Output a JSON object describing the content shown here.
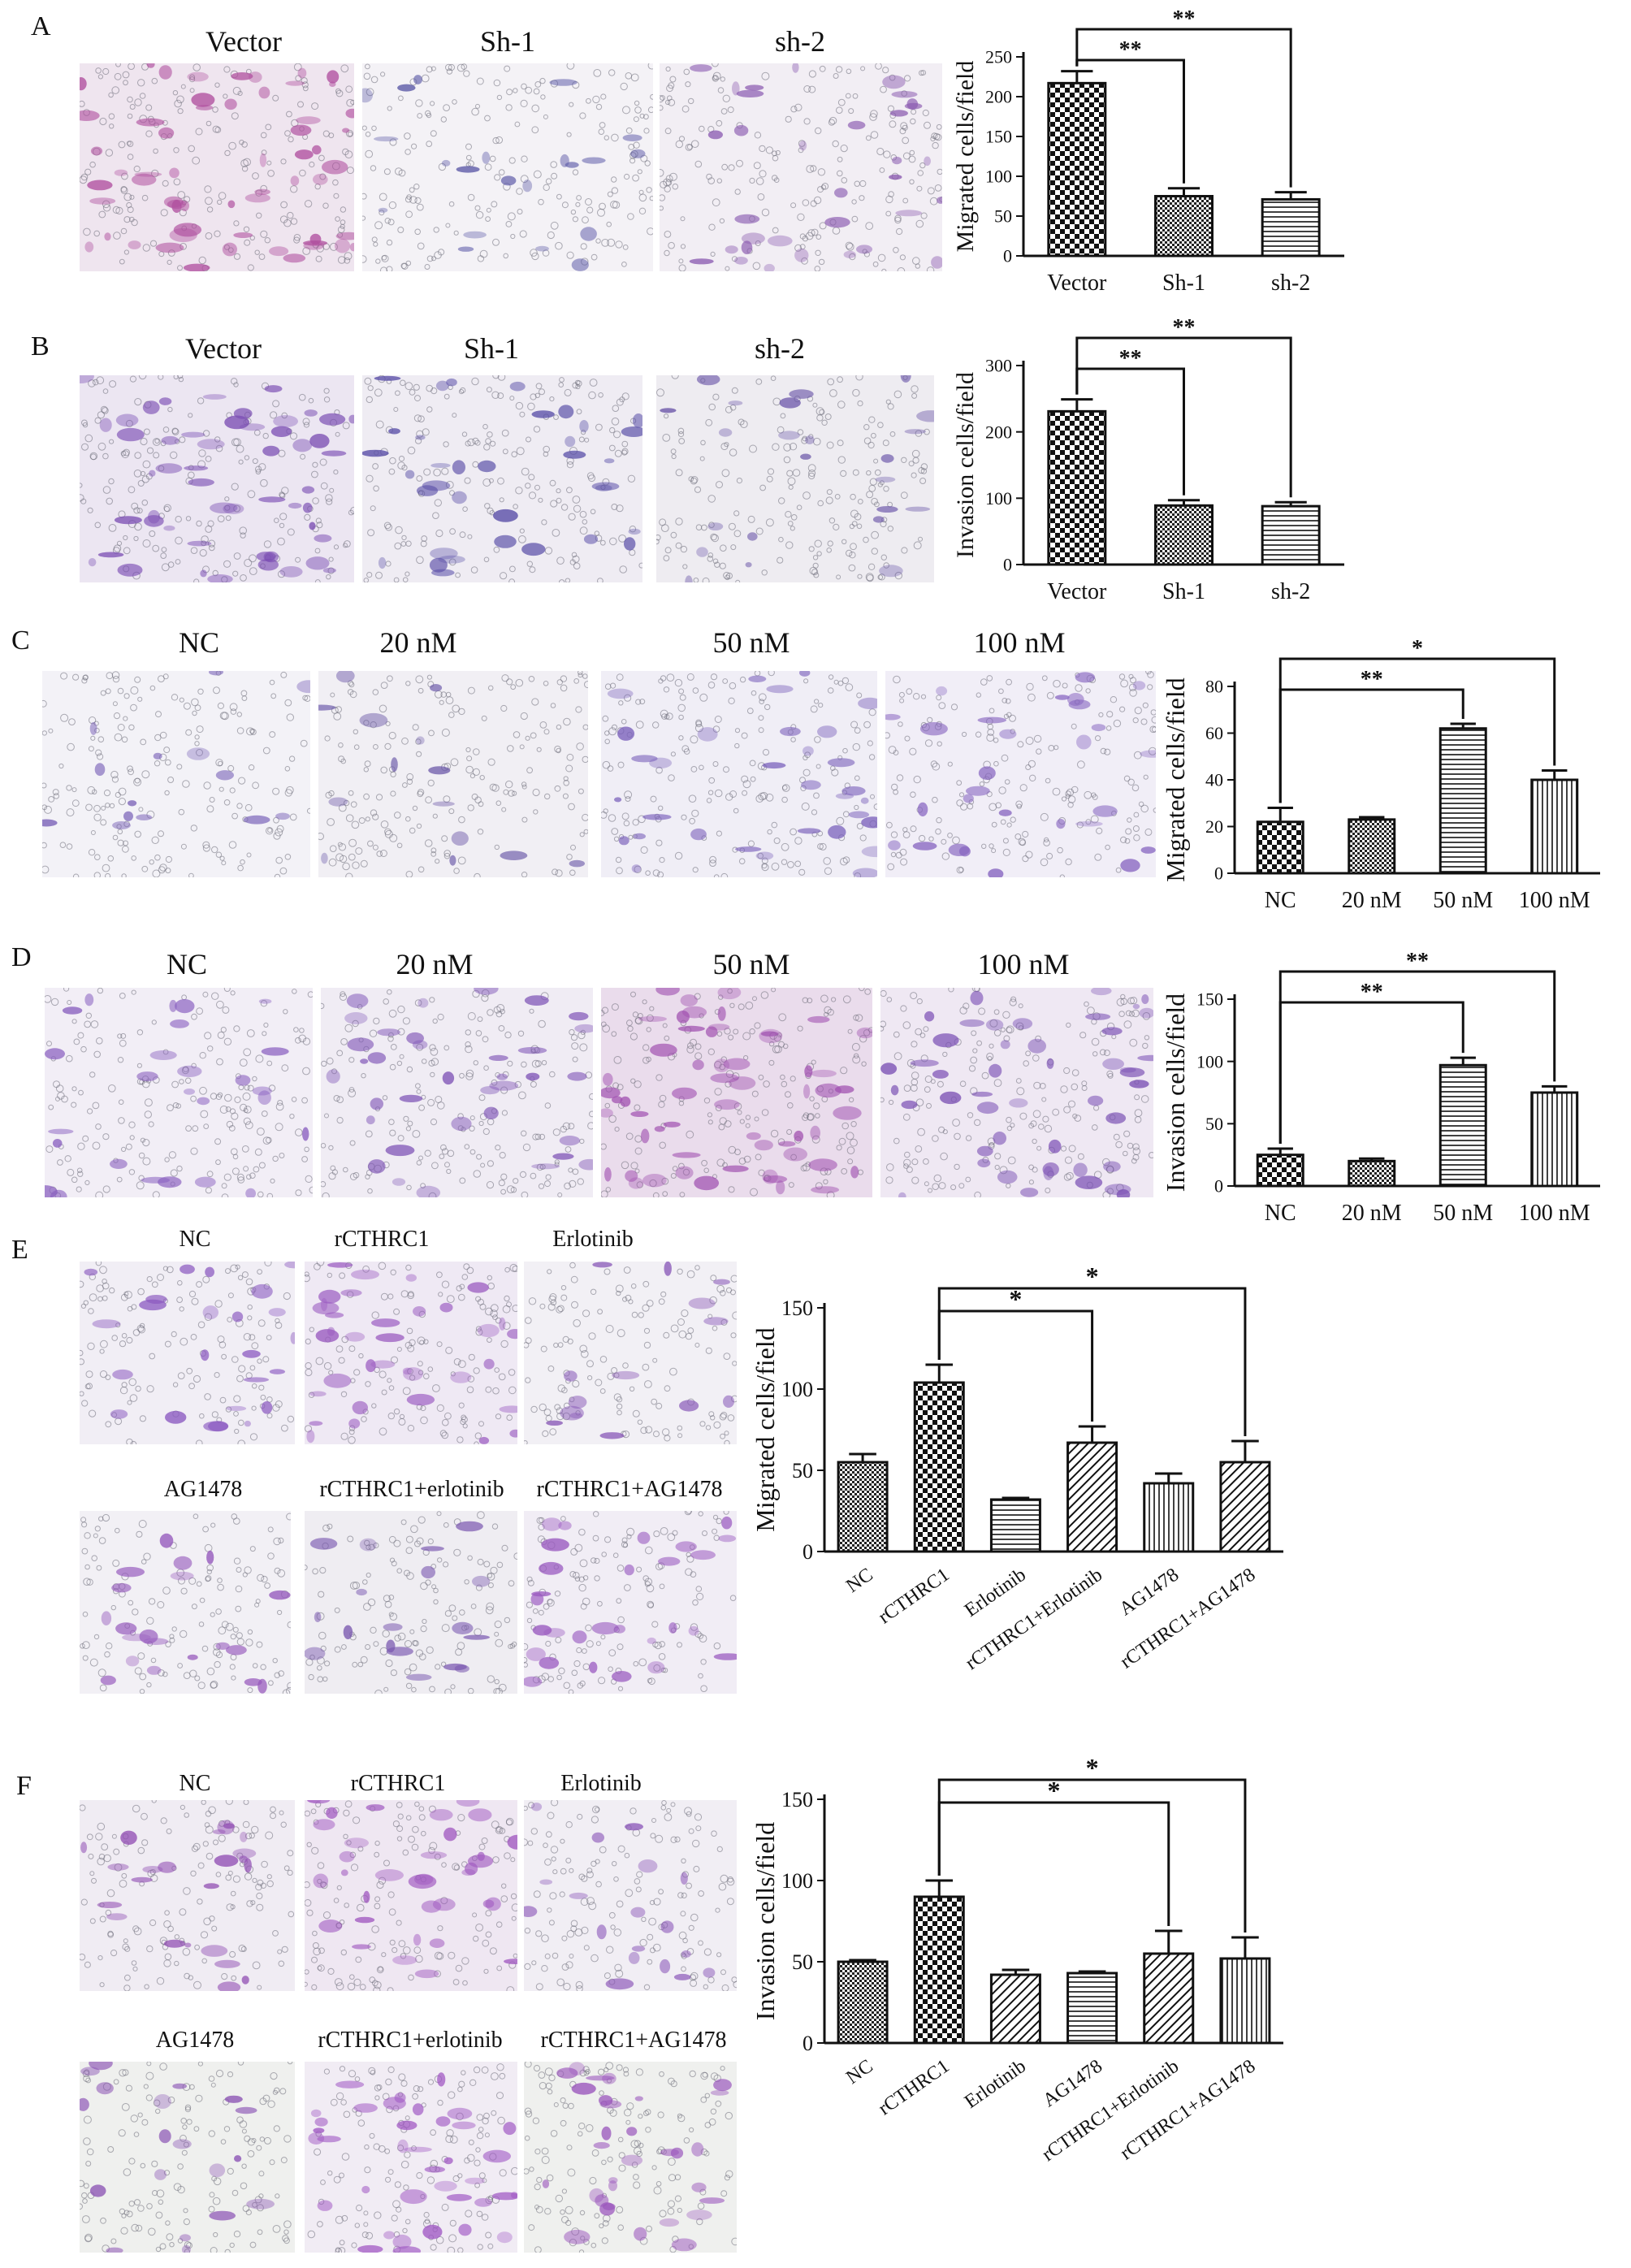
{
  "panels": [
    {
      "id": "A",
      "letter": "A",
      "captions": [
        "Vector",
        "Sh-1",
        "sh-2"
      ],
      "images": [
        {
          "bg": "#efe5ef",
          "density": 1.0,
          "cell": "#b0509f"
        },
        {
          "bg": "#f4f2f6",
          "density": 0.35,
          "cell": "#5d5aa8"
        },
        {
          "bg": "#f2eef4",
          "density": 0.55,
          "cell": "#8a5ab0"
        }
      ],
      "chart_data": {
        "type": "bar",
        "categories": [
          "Vector",
          "Sh-1",
          "sh-2"
        ],
        "values": [
          217,
          75,
          71
        ],
        "errors": [
          15,
          10,
          9
        ],
        "ylabel": "Migrated cells/field",
        "ylim": [
          0,
          250
        ],
        "yticks": [
          0,
          50,
          100,
          150,
          200,
          250
        ],
        "patterns": [
          "check",
          "checkfine",
          "hlines"
        ],
        "significance": [
          {
            "from": 0,
            "to": 1,
            "label": "**"
          },
          {
            "from": 0,
            "to": 2,
            "label": "**"
          }
        ]
      }
    },
    {
      "id": "B",
      "letter": "B",
      "captions": [
        "Vector",
        "Sh-1",
        "sh-2"
      ],
      "images": [
        {
          "bg": "#ece6f2",
          "density": 0.9,
          "cell": "#7c4fb4"
        },
        {
          "bg": "#efecf3",
          "density": 0.6,
          "cell": "#5a4fa8"
        },
        {
          "bg": "#eeecf1",
          "density": 0.4,
          "cell": "#6a55a8"
        }
      ],
      "chart_data": {
        "type": "bar",
        "categories": [
          "Vector",
          "Sh-1",
          "sh-2"
        ],
        "values": [
          231,
          89,
          88
        ],
        "errors": [
          18,
          8,
          6
        ],
        "ylabel": "Invasion cells/field",
        "ylim": [
          0,
          300
        ],
        "yticks": [
          0,
          100,
          200,
          300
        ],
        "patterns": [
          "check",
          "checkfine",
          "hlines"
        ],
        "significance": [
          {
            "from": 0,
            "to": 1,
            "label": "**"
          },
          {
            "from": 0,
            "to": 2,
            "label": "**"
          }
        ]
      }
    },
    {
      "id": "C",
      "letter": "C",
      "captions": [
        "NC",
        "20 nM",
        "50 nM",
        "100 nM"
      ],
      "images": [
        {
          "bg": "#f3f2f7",
          "density": 0.25,
          "cell": "#7a62b8"
        },
        {
          "bg": "#f1eff4",
          "density": 0.25,
          "cell": "#6a58a8"
        },
        {
          "bg": "#f0eef6",
          "density": 0.55,
          "cell": "#7a60bb"
        },
        {
          "bg": "#f1eef7",
          "density": 0.5,
          "cell": "#8664c0"
        }
      ],
      "chart_data": {
        "type": "bar",
        "categories": [
          "NC",
          "20 nM",
          "50 nM",
          "100 nM"
        ],
        "values": [
          22,
          23,
          62,
          40
        ],
        "errors": [
          6,
          1,
          2,
          4
        ],
        "ylabel": "Migrated cells/field",
        "ylim": [
          0,
          80
        ],
        "yticks": [
          0,
          20,
          40,
          60,
          80
        ],
        "patterns": [
          "check",
          "checkfine",
          "hlines",
          "vlines"
        ],
        "significance": [
          {
            "from": 0,
            "to": 2,
            "label": "**"
          },
          {
            "from": 0,
            "to": 3,
            "label": "*"
          }
        ]
      }
    },
    {
      "id": "D",
      "letter": "D",
      "captions": [
        "NC",
        "20 nM",
        "50 nM",
        "100 nM"
      ],
      "images": [
        {
          "bg": "#f2eef6",
          "density": 0.45,
          "cell": "#8a60c0"
        },
        {
          "bg": "#f0ecf4",
          "density": 0.6,
          "cell": "#8258b8"
        },
        {
          "bg": "#eadcec",
          "density": 1.0,
          "cell": "#a050b0"
        },
        {
          "bg": "#efe8f3",
          "density": 0.8,
          "cell": "#7a4fb4"
        }
      ],
      "chart_data": {
        "type": "bar",
        "categories": [
          "NC",
          "20 nM",
          "50 nM",
          "100 nM"
        ],
        "values": [
          25,
          20,
          97,
          75
        ],
        "errors": [
          5,
          2,
          6,
          5
        ],
        "ylabel": "Invasion cells/field",
        "ylim": [
          0,
          150
        ],
        "yticks": [
          0,
          50,
          100,
          150
        ],
        "patterns": [
          "check",
          "checkfine",
          "hlines",
          "vlines"
        ],
        "significance": [
          {
            "from": 0,
            "to": 2,
            "label": "**"
          },
          {
            "from": 0,
            "to": 3,
            "label": "**"
          }
        ]
      }
    },
    {
      "id": "E",
      "letter": "E",
      "captions": [
        "NC",
        "rCTHRC1",
        "Erlotinib",
        "AG1478",
        "rCTHRC1+erlotinib",
        "rCTHRC1+AG1478"
      ],
      "images": [
        {
          "bg": "#f1eef5",
          "density": 0.6,
          "cell": "#8a58c0"
        },
        {
          "bg": "#efe9f4",
          "density": 0.9,
          "cell": "#9a5ac0"
        },
        {
          "bg": "#f2f0f5",
          "density": 0.35,
          "cell": "#8a5ab8"
        },
        {
          "bg": "#f2f0f5",
          "density": 0.5,
          "cell": "#9558bc"
        },
        {
          "bg": "#efedf2",
          "density": 0.45,
          "cell": "#7a58b0"
        },
        {
          "bg": "#f1edf5",
          "density": 0.7,
          "cell": "#9a5ac0"
        }
      ],
      "chart_data": {
        "type": "bar",
        "categories": [
          "NC",
          "rCTHRC1",
          "Erlotinib",
          "rCTHRC1+Erlotinib",
          "AG1478",
          "rCTHRC1+AG1478"
        ],
        "values": [
          55,
          104,
          32,
          67,
          42,
          55
        ],
        "errors": [
          5,
          11,
          1,
          10,
          6,
          13
        ],
        "ylabel": "Migrated cells/field",
        "ylim": [
          0,
          150
        ],
        "yticks": [
          0,
          50,
          100,
          150
        ],
        "patterns": [
          "checkfine",
          "check",
          "hlines",
          "diag",
          "vlines",
          "diag"
        ],
        "significance": [
          {
            "from": 1,
            "to": 3,
            "label": "*"
          },
          {
            "from": 1,
            "to": 5,
            "label": "*"
          }
        ]
      }
    },
    {
      "id": "F",
      "letter": "F",
      "captions": [
        "NC",
        "rCTHRC1",
        "Erlotinib",
        "AG1478",
        "rCTHRC1+erlotinib",
        "rCTHRC1+AG1478"
      ],
      "images": [
        {
          "bg": "#f0ecf3",
          "density": 0.55,
          "cell": "#9250b4"
        },
        {
          "bg": "#efe7f2",
          "density": 0.85,
          "cell": "#a058c0"
        },
        {
          "bg": "#f1eef4",
          "density": 0.45,
          "cell": "#8a55b8"
        },
        {
          "bg": "#eff0ee",
          "density": 0.45,
          "cell": "#8a52b4"
        },
        {
          "bg": "#f1ecf4",
          "density": 0.9,
          "cell": "#a058c4"
        },
        {
          "bg": "#eff0ee",
          "density": 0.75,
          "cell": "#9a55bc"
        }
      ],
      "chart_data": {
        "type": "bar",
        "categories": [
          "NC",
          "rCTHRC1",
          "Erlotinib",
          "AG1478",
          "rCTHRC1+Erlotinib",
          "rCTHRC1+AG1478"
        ],
        "values": [
          50,
          90,
          42,
          43,
          55,
          52
        ],
        "errors": [
          1,
          10,
          3,
          1,
          14,
          13
        ],
        "ylabel": "Invasion cells/field",
        "ylim": [
          0,
          150
        ],
        "yticks": [
          0,
          50,
          100,
          150
        ],
        "patterns": [
          "checkfine",
          "check",
          "diag",
          "hlines",
          "diag",
          "vlines"
        ],
        "significance": [
          {
            "from": 1,
            "to": 4,
            "label": "*"
          },
          {
            "from": 1,
            "to": 5,
            "label": "*"
          }
        ]
      }
    }
  ]
}
